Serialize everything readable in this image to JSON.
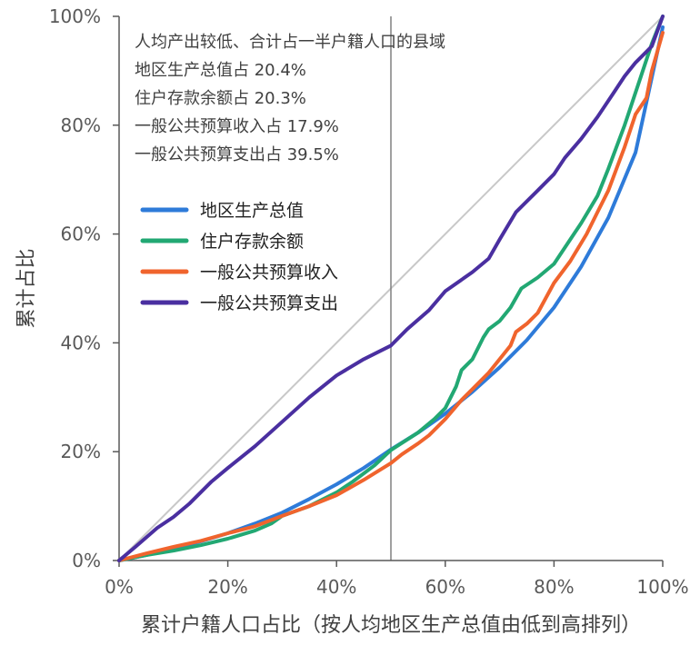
{
  "chart_data": {
    "type": "line",
    "xlabel": "累计户籍人口占比（按人均地区生产总值由低到高排列）",
    "ylabel": "累计占比",
    "xlim": [
      0,
      100
    ],
    "ylim": [
      0,
      100
    ],
    "x_ticks": [
      "0%",
      "20%",
      "40%",
      "60%",
      "80%",
      "100%"
    ],
    "y_ticks": [
      "0%",
      "20%",
      "40%",
      "60%",
      "80%",
      "100%"
    ],
    "grid": false,
    "legend_position": "upper-left",
    "reference_lines": [
      {
        "kind": "diagonal",
        "from": [
          0,
          0
        ],
        "to": [
          100,
          100
        ],
        "color": "#c8c8c8"
      },
      {
        "kind": "vertical",
        "x": 50,
        "color": "#808080"
      }
    ],
    "annotation": {
      "lines": [
        "人均产出较低、合计占一半户籍人口的县域",
        "地区生产总值占 20.4%",
        "住户存款余额占 20.3%",
        "一般公共预算收入占 17.9%",
        "一般公共预算支出占 39.5%"
      ]
    },
    "series": [
      {
        "name": "地区生产总值",
        "color": "#2e7bd9",
        "points": [
          [
            0,
            0
          ],
          [
            5,
            1
          ],
          [
            10,
            2.2
          ],
          [
            15,
            3.5
          ],
          [
            20,
            5
          ],
          [
            25,
            6.8
          ],
          [
            30,
            8.8
          ],
          [
            35,
            11.3
          ],
          [
            40,
            14
          ],
          [
            45,
            17
          ],
          [
            50,
            20.4
          ],
          [
            55,
            23.5
          ],
          [
            60,
            27
          ],
          [
            65,
            31
          ],
          [
            70,
            35.5
          ],
          [
            75,
            40.5
          ],
          [
            80,
            46.5
          ],
          [
            85,
            54
          ],
          [
            90,
            63
          ],
          [
            95,
            75
          ],
          [
            100,
            98
          ]
        ]
      },
      {
        "name": "住户存款余额",
        "color": "#22a873",
        "points": [
          [
            0,
            0
          ],
          [
            5,
            1
          ],
          [
            10,
            1.8
          ],
          [
            15,
            2.8
          ],
          [
            20,
            4
          ],
          [
            25,
            5.5
          ],
          [
            28,
            6.8
          ],
          [
            30,
            8.2
          ],
          [
            35,
            10
          ],
          [
            40,
            12.5
          ],
          [
            43,
            14.5
          ],
          [
            47,
            17.5
          ],
          [
            50,
            20.3
          ],
          [
            55,
            23.5
          ],
          [
            58,
            26
          ],
          [
            60,
            28
          ],
          [
            62,
            32
          ],
          [
            63,
            35
          ],
          [
            65,
            37
          ],
          [
            67,
            41
          ],
          [
            68,
            42.5
          ],
          [
            70,
            44
          ],
          [
            72,
            46.5
          ],
          [
            74,
            50
          ],
          [
            77,
            52
          ],
          [
            80,
            54.5
          ],
          [
            85,
            62
          ],
          [
            88,
            67
          ],
          [
            90,
            72
          ],
          [
            93,
            80
          ],
          [
            96,
            89
          ],
          [
            98,
            95
          ],
          [
            100,
            100
          ]
        ]
      },
      {
        "name": "一般公共预算收入",
        "color": "#f0642d",
        "points": [
          [
            0,
            0
          ],
          [
            5,
            1.3
          ],
          [
            10,
            2.5
          ],
          [
            15,
            3.6
          ],
          [
            20,
            5
          ],
          [
            25,
            6.3
          ],
          [
            30,
            8.2
          ],
          [
            35,
            10
          ],
          [
            40,
            12
          ],
          [
            45,
            14.8
          ],
          [
            50,
            17.9
          ],
          [
            52,
            19.5
          ],
          [
            55,
            21.5
          ],
          [
            57,
            23
          ],
          [
            60,
            26
          ],
          [
            63,
            29.5
          ],
          [
            65,
            31.5
          ],
          [
            68,
            34.5
          ],
          [
            70,
            37
          ],
          [
            72,
            39.5
          ],
          [
            73,
            42
          ],
          [
            75,
            43.5
          ],
          [
            77,
            45.5
          ],
          [
            80,
            51
          ],
          [
            83,
            55
          ],
          [
            86,
            60
          ],
          [
            88,
            64
          ],
          [
            90,
            68
          ],
          [
            93,
            76
          ],
          [
            95,
            82
          ],
          [
            97,
            85
          ],
          [
            98,
            90
          ],
          [
            100,
            97
          ]
        ]
      },
      {
        "name": "一般公共预算支出",
        "color": "#4a2fa0",
        "points": [
          [
            0,
            0
          ],
          [
            3,
            2.5
          ],
          [
            7,
            6
          ],
          [
            10,
            8
          ],
          [
            13,
            10.5
          ],
          [
            17,
            14.5
          ],
          [
            20,
            17
          ],
          [
            25,
            21
          ],
          [
            30,
            25.5
          ],
          [
            35,
            30
          ],
          [
            40,
            34
          ],
          [
            45,
            37
          ],
          [
            50,
            39.5
          ],
          [
            53,
            42.5
          ],
          [
            57,
            46
          ],
          [
            60,
            49.5
          ],
          [
            65,
            53
          ],
          [
            68,
            55.5
          ],
          [
            70,
            59
          ],
          [
            73,
            64
          ],
          [
            77,
            68
          ],
          [
            80,
            71
          ],
          [
            82,
            74
          ],
          [
            85,
            77.5
          ],
          [
            88,
            81.5
          ],
          [
            91,
            86
          ],
          [
            93,
            89
          ],
          [
            95,
            91.5
          ],
          [
            97,
            93.5
          ],
          [
            98,
            94.5
          ],
          [
            100,
            100
          ]
        ]
      }
    ]
  }
}
